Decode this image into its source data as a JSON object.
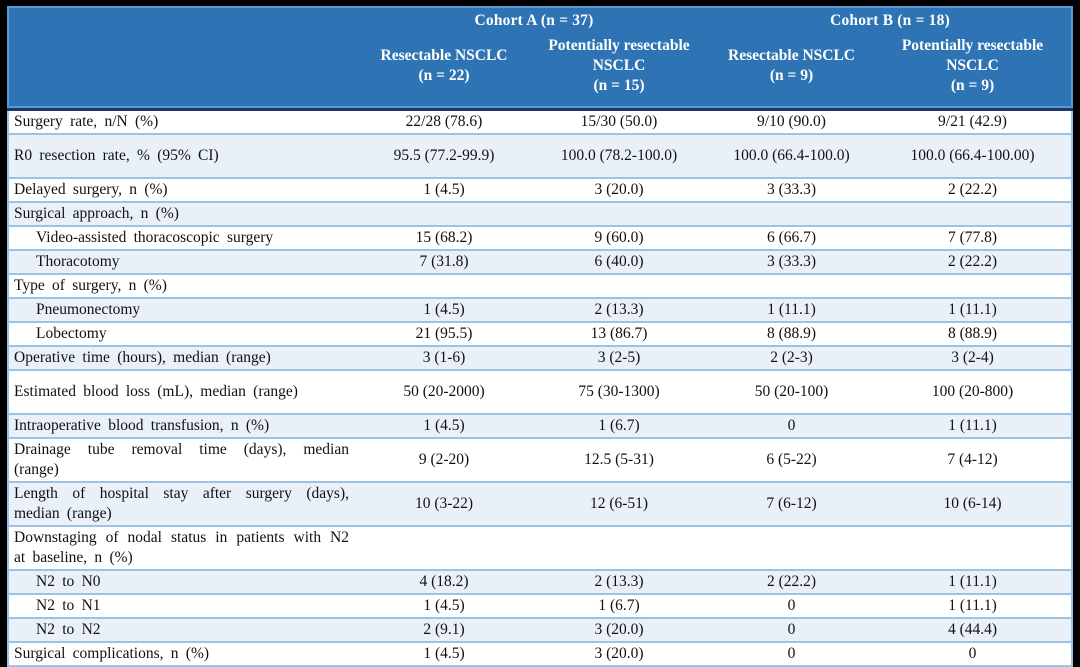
{
  "table": {
    "header": {
      "cohorts": [
        {
          "label": "Cohort A (n = 37)"
        },
        {
          "label": "Cohort B (n = 18)"
        }
      ],
      "subcolumns": [
        {
          "name": "Resectable NSCLC",
          "n": "(n = 22)"
        },
        {
          "name": "Potentially resectable NSCLC",
          "n": "(n = 15)"
        },
        {
          "name": "Resectable NSCLC",
          "n": "(n = 9)"
        },
        {
          "name": "Potentially resectable NSCLC",
          "n": "(n = 9)"
        }
      ]
    },
    "rows": [
      {
        "label": "Surgery rate, n/N (%)",
        "indent": false,
        "tall": false,
        "values": [
          "22/28 (78.6)",
          "15/30 (50.0)",
          "9/10 (90.0)",
          "9/21 (42.9)"
        ]
      },
      {
        "label": "R0 resection rate, % (95% CI)",
        "indent": false,
        "tall": true,
        "values": [
          "95.5 (77.2-99.9)",
          "100.0 (78.2-100.0)",
          "100.0 (66.4-100.0)",
          "100.0 (66.4-100.00)"
        ]
      },
      {
        "label": "Delayed surgery, n (%)",
        "indent": false,
        "tall": false,
        "values": [
          "1 (4.5)",
          "3 (20.0)",
          "3 (33.3)",
          "2 (22.2)"
        ]
      },
      {
        "label": "Surgical approach, n (%)",
        "indent": false,
        "tall": false,
        "values": [
          "",
          "",
          "",
          ""
        ]
      },
      {
        "label": "Video-assisted thoracoscopic surgery",
        "indent": true,
        "tall": false,
        "values": [
          "15 (68.2)",
          "9 (60.0)",
          "6 (66.7)",
          "7 (77.8)"
        ]
      },
      {
        "label": "Thoracotomy",
        "indent": true,
        "tall": false,
        "values": [
          "7 (31.8)",
          "6 (40.0)",
          "3 (33.3)",
          "2 (22.2)"
        ]
      },
      {
        "label": "Type of surgery, n (%)",
        "indent": false,
        "tall": false,
        "values": [
          "",
          "",
          "",
          ""
        ]
      },
      {
        "label": "Pneumonectomy",
        "indent": true,
        "tall": false,
        "values": [
          "1 (4.5)",
          "2 (13.3)",
          "1 (11.1)",
          "1 (11.1)"
        ]
      },
      {
        "label": "Lobectomy",
        "indent": true,
        "tall": false,
        "values": [
          "21 (95.5)",
          "13 (86.7)",
          "8 (88.9)",
          "8 (88.9)"
        ]
      },
      {
        "label": "Operative time (hours), median (range)",
        "indent": false,
        "tall": false,
        "values": [
          "3 (1-6)",
          "3 (2-5)",
          "2 (2-3)",
          "3 (2-4)"
        ]
      },
      {
        "label": "Estimated blood loss (mL), median (range)",
        "indent": false,
        "tall": true,
        "values": [
          "50 (20-2000)",
          "75 (30-1300)",
          "50 (20-100)",
          "100 (20-800)"
        ]
      },
      {
        "label": "Intraoperative blood transfusion, n (%)",
        "indent": false,
        "tall": false,
        "values": [
          "1 (4.5)",
          "1 (6.7)",
          "0",
          "1 (11.1)"
        ]
      },
      {
        "label": "Drainage tube removal time (days), median (range)",
        "indent": false,
        "tall": true,
        "values": [
          "9 (2-20)",
          "12.5 (5-31)",
          "6 (5-22)",
          "7 (4-12)"
        ]
      },
      {
        "label": "Length of hospital stay after surgery (days), median (range)",
        "indent": false,
        "tall": true,
        "values": [
          "10 (3-22)",
          "12 (6-51)",
          "7 (6-12)",
          "10 (6-14)"
        ]
      },
      {
        "label": "Downstaging of nodal status in patients with N2 at baseline, n (%)",
        "indent": false,
        "tall": true,
        "values": [
          "",
          "",
          "",
          ""
        ]
      },
      {
        "label": "N2 to N0",
        "indent": true,
        "tall": false,
        "values": [
          "4 (18.2)",
          "2 (13.3)",
          "2 (22.2)",
          "1 (11.1)"
        ]
      },
      {
        "label": "N2 to N1",
        "indent": true,
        "tall": false,
        "values": [
          "1 (4.5)",
          "1 (6.7)",
          "0",
          "1 (11.1)"
        ]
      },
      {
        "label": "N2 to N2",
        "indent": true,
        "tall": false,
        "values": [
          "2 (9.1)",
          "3 (20.0)",
          "0",
          "4 (44.4)"
        ]
      },
      {
        "label": "Surgical complications, n (%)",
        "indent": false,
        "tall": false,
        "values": [
          "1 (4.5)",
          "3 (20.0)",
          "0",
          "0"
        ]
      }
    ]
  },
  "colors": {
    "header_background": "#2E74B5",
    "header_border": "#5B9BD5",
    "header_text": "#FFFFFF",
    "header_divider": "#1F3864",
    "row_alternate_background": "#EAF0F8",
    "row_separator": "#9CC2E5",
    "outer_frame": "#000000",
    "body_text": "#111111"
  }
}
